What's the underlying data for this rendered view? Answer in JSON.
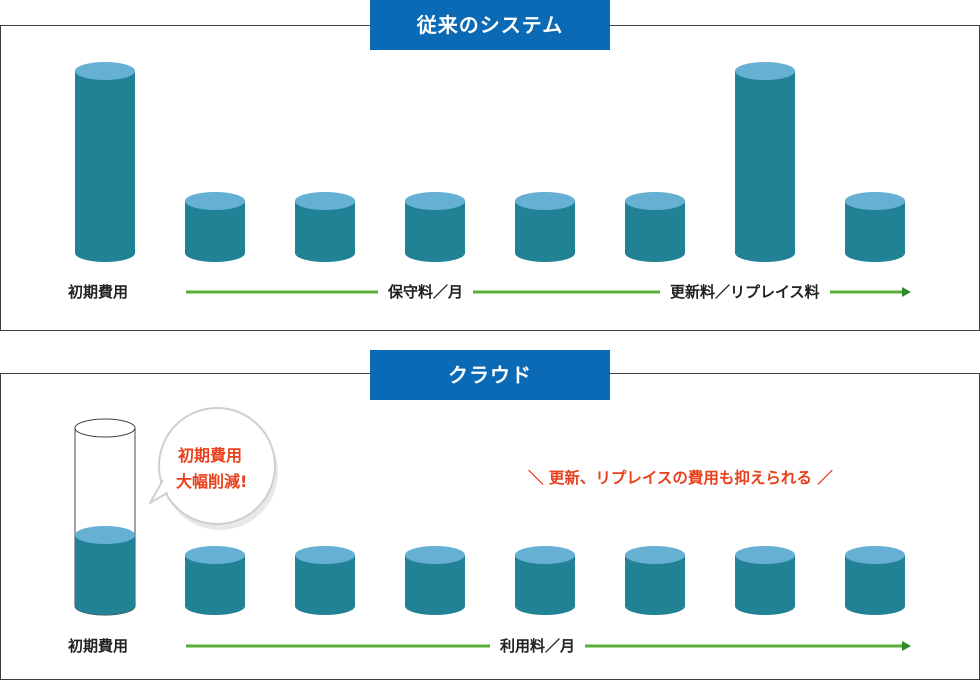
{
  "colors": {
    "cylinder_side": "#218296",
    "cylinder_top": "#66b0d4",
    "arrow_green": "#5aaf3a",
    "title_bg": "#0b6ab5",
    "highlight_red": "#e8401c"
  },
  "legacy": {
    "title": "従来のシステム",
    "label_initial": "初期費用",
    "label_maintenance": "保守料／月",
    "label_renewal": "更新料／リプレイス料",
    "cylinder_levels": [
      "tall",
      "short",
      "short",
      "short",
      "short",
      "short",
      "tall",
      "short"
    ]
  },
  "cloud": {
    "title": "クラウド",
    "label_initial": "初期費用",
    "label_usage": "利用料／月",
    "bubble_line1": "初期費用",
    "bubble_line2": "大幅削減!",
    "note": "＼ 更新、リプレイスの費用も抑えられる ／",
    "cylinder_levels": [
      "reduced",
      "short",
      "short",
      "short",
      "short",
      "short",
      "short",
      "short"
    ]
  }
}
